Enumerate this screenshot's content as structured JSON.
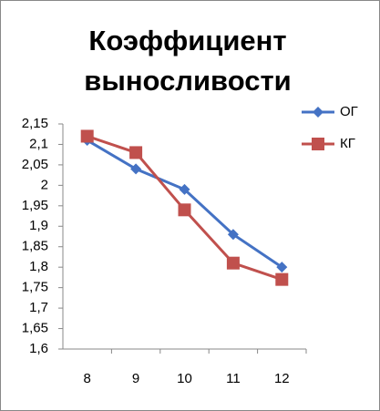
{
  "chart_data": {
    "type": "line",
    "title": "Коэффициент выносливости",
    "categories": [
      "8",
      "9",
      "10",
      "11",
      "12"
    ],
    "series": [
      {
        "name": "ОГ",
        "color": "#4472c4",
        "marker": "diamond",
        "values": [
          2.11,
          2.04,
          1.99,
          1.88,
          1.8
        ]
      },
      {
        "name": "КГ",
        "color": "#c0504d",
        "marker": "square",
        "values": [
          2.12,
          2.08,
          1.94,
          1.81,
          1.77
        ]
      }
    ],
    "ylim": [
      1.6,
      2.15
    ],
    "yticks": [
      {
        "value": 1.6,
        "label": "1,6"
      },
      {
        "value": 1.65,
        "label": "1,65"
      },
      {
        "value": 1.7,
        "label": "1,7"
      },
      {
        "value": 1.75,
        "label": "1,75"
      },
      {
        "value": 1.8,
        "label": "1,8"
      },
      {
        "value": 1.85,
        "label": "1,85"
      },
      {
        "value": 1.9,
        "label": "1,9"
      },
      {
        "value": 1.95,
        "label": "1,95"
      },
      2,
      {
        "value": 2.05,
        "label": "2,05"
      },
      {
        "value": 2.1,
        "label": "2,1"
      },
      {
        "value": 2.15,
        "label": "2,15"
      }
    ],
    "grid": false,
    "legend": "right"
  }
}
